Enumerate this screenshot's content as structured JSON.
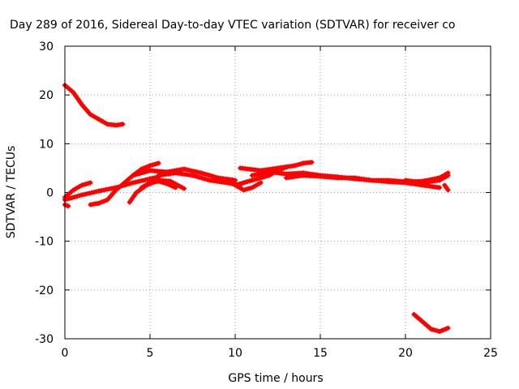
{
  "chart_data": {
    "type": "scatter",
    "title": "Day 289 of 2016, Sidereal Day-to-day VTEC variation (SDTVAR) for receiver co",
    "xlabel": "GPS time / hours",
    "ylabel": "SDTVAR / TECUs",
    "xlim": [
      0,
      25
    ],
    "ylim": [
      -30,
      30
    ],
    "xticks": [
      "0",
      "5",
      "10",
      "15",
      "20",
      "25"
    ],
    "yticks": [
      "30",
      "20",
      "10",
      "0",
      "-10",
      "-20",
      "-30"
    ],
    "grid": true,
    "series_color": "#ff0000",
    "series": [
      {
        "x": [
          0.0,
          0.5,
          1.0,
          1.5,
          2.0,
          2.5,
          3.0,
          3.4
        ],
        "y": [
          22,
          20.5,
          18,
          16,
          15,
          14,
          13.8,
          14
        ]
      },
      {
        "x": [
          0.0,
          0.5,
          1.0,
          1.5
        ],
        "y": [
          -1,
          0.5,
          1.5,
          2
        ]
      },
      {
        "x": [
          0.0,
          1.0,
          2.0,
          3.0,
          4.0,
          5.0,
          5.5
        ],
        "y": [
          -1.5,
          -0.5,
          0.3,
          1.0,
          2.0,
          2.8,
          3.2
        ]
      },
      {
        "x": [
          0.0,
          0.2
        ],
        "y": [
          -2.5,
          -2.8
        ]
      },
      {
        "x": [
          1.5,
          2.0,
          2.5,
          3.0,
          3.5,
          4.0,
          4.5,
          5.0,
          5.5
        ],
        "y": [
          -2.5,
          -2.2,
          -1.5,
          0.5,
          2,
          3.5,
          4.8,
          5.5,
          6
        ]
      },
      {
        "x": [
          3.8,
          4.2,
          4.8,
          5.5,
          6.2,
          7.0
        ],
        "y": [
          -2,
          0,
          1.5,
          2.5,
          2.3,
          0.8
        ]
      },
      {
        "x": [
          4.5,
          5.0,
          5.5,
          6.0,
          6.5
        ],
        "y": [
          1,
          2,
          2.3,
          1.8,
          1.0
        ]
      },
      {
        "x": [
          4.0,
          5.0,
          6.0,
          7.0,
          8.0,
          9.0,
          10.0
        ],
        "y": [
          3.5,
          4.5,
          4.2,
          4.8,
          4.0,
          3.0,
          2.5
        ]
      },
      {
        "x": [
          5.5,
          6.5,
          7.5,
          8.5,
          9.5,
          10.3
        ],
        "y": [
          3.5,
          4.0,
          3.5,
          2.5,
          2.0,
          1.5
        ]
      },
      {
        "x": [
          9.5,
          10.0,
          10.5,
          11.0,
          11.5
        ],
        "y": [
          2.5,
          1.5,
          0.5,
          1.0,
          2.0
        ]
      },
      {
        "x": [
          10.0,
          11.0,
          12.0,
          12.5,
          13.0
        ],
        "y": [
          1.5,
          2.5,
          3.5,
          4.5,
          5.2
        ]
      },
      {
        "x": [
          10.3,
          11.5,
          12.5,
          13.5,
          14.0,
          14.5
        ],
        "y": [
          5,
          4.5,
          5.0,
          5.5,
          6.0,
          6.2
        ]
      },
      {
        "x": [
          11.0,
          12.0,
          13.0,
          14.0,
          15.0,
          16.0,
          17.0,
          18.0,
          19.0,
          20.0,
          21.0,
          22.0
        ],
        "y": [
          3.5,
          4.2,
          3.8,
          4.0,
          3.5,
          3.2,
          2.8,
          2.5,
          2.2,
          2.0,
          1.5,
          1.0
        ]
      },
      {
        "x": [
          13.0,
          14.0,
          15.0,
          16.0,
          17.0,
          18.0,
          19.0,
          20.0,
          21.0,
          22.0,
          22.5
        ],
        "y": [
          3.0,
          3.5,
          3.3,
          3.0,
          3.0,
          2.5,
          2.5,
          2.2,
          2.3,
          3.0,
          4.0
        ]
      },
      {
        "x": [
          20.0,
          21.0,
          22.0,
          22.5
        ],
        "y": [
          2.5,
          2.0,
          2.5,
          3.5
        ]
      },
      {
        "x": [
          22.3,
          22.5
        ],
        "y": [
          1.5,
          0.5
        ]
      },
      {
        "x": [
          20.5,
          21.0,
          21.5,
          22.0,
          22.5
        ],
        "y": [
          -25,
          -26.5,
          -28.0,
          -28.5,
          -27.8
        ]
      }
    ]
  }
}
